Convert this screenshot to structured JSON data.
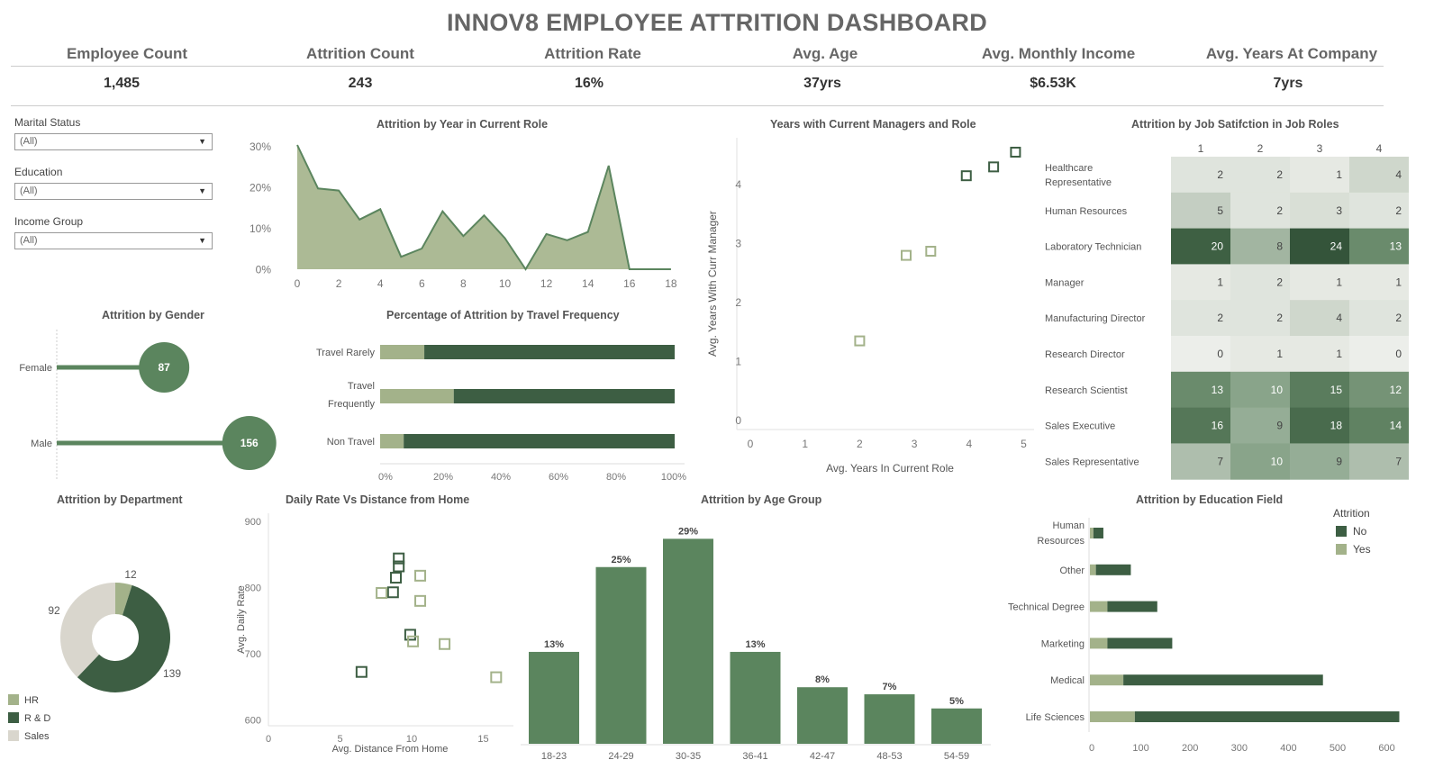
{
  "dashboard": {
    "title": "INNOV8 EMPLOYEE ATTRITION DASHBOARD"
  },
  "kpis": [
    {
      "label": "Employee Count",
      "value": "1,485"
    },
    {
      "label": "Attrition Count",
      "value": "243"
    },
    {
      "label": "Attrition Rate",
      "value": "16%"
    },
    {
      "label": "Avg. Age",
      "value": "37yrs"
    },
    {
      "label": "Avg. Monthly Income",
      "value": "$6.53K"
    },
    {
      "label": "Avg. Years At Company",
      "value": "7yrs"
    }
  ],
  "filters": [
    {
      "label": "Marital Status",
      "value": "(All)"
    },
    {
      "label": "Education",
      "value": "(All)"
    },
    {
      "label": "Income Group",
      "value": "(All)"
    }
  ],
  "colors": {
    "dark": "#3d5e43",
    "mid": "#5b855e",
    "light": "#a3b28a",
    "pale": "#d9d6cd"
  },
  "chart_data": [
    {
      "id": "year_role",
      "type": "area",
      "title": "Attrition by Year in Current Role",
      "x": [
        0,
        1,
        2,
        3,
        4,
        5,
        6,
        7,
        8,
        9,
        10,
        11,
        12,
        13,
        14,
        15,
        16,
        17,
        18
      ],
      "values": [
        30,
        19.5,
        19,
        12,
        14.5,
        3,
        5,
        14,
        8,
        13,
        7.5,
        0,
        8.5,
        7,
        9,
        25,
        0,
        0,
        0
      ],
      "xticks": [
        "0",
        "2",
        "4",
        "6",
        "8",
        "10",
        "12",
        "14",
        "16",
        "18"
      ],
      "yticks": [
        "30%",
        "20%",
        "10%",
        "0%"
      ]
    },
    {
      "id": "scatter_mgr",
      "type": "scatter",
      "title": "Years with Current Managers and Role",
      "xlabel": "Avg. Years In Current Role",
      "ylabel": "Avg. Years With Curr Manager",
      "xlim": [
        0,
        5
      ],
      "ylim": [
        0,
        4.5
      ],
      "xticks": [
        "0",
        "1",
        "2",
        "3",
        "4",
        "5"
      ],
      "yticks": [
        "0",
        "1",
        "2",
        "3",
        "4"
      ],
      "points": [
        {
          "x": 2.0,
          "y": 1.35,
          "attrition": "Yes"
        },
        {
          "x": 2.85,
          "y": 2.8,
          "attrition": "Yes"
        },
        {
          "x": 3.3,
          "y": 2.87,
          "attrition": "Yes"
        },
        {
          "x": 3.95,
          "y": 4.15,
          "attrition": "No"
        },
        {
          "x": 4.45,
          "y": 4.3,
          "attrition": "No"
        },
        {
          "x": 4.85,
          "y": 4.55,
          "attrition": "No"
        }
      ]
    },
    {
      "id": "heatmap",
      "type": "heatmap",
      "title": "Attrition by Job Satifction in Job Roles",
      "columns": [
        "1",
        "2",
        "3",
        "4"
      ],
      "rows": [
        "Healthcare Representative",
        "Human Resources",
        "Laboratory Technician",
        "Manager",
        "Manufacturing Director",
        "Research Director",
        "Research Scientist",
        "Sales Executive",
        "Sales Representative"
      ],
      "values": [
        [
          2,
          2,
          1,
          4
        ],
        [
          5,
          2,
          3,
          2
        ],
        [
          20,
          8,
          24,
          13
        ],
        [
          1,
          2,
          1,
          1
        ],
        [
          2,
          2,
          4,
          2
        ],
        [
          0,
          1,
          1,
          0
        ],
        [
          13,
          10,
          15,
          12
        ],
        [
          16,
          9,
          18,
          14
        ],
        [
          7,
          10,
          9,
          7
        ]
      ]
    },
    {
      "id": "gender",
      "type": "bar",
      "title": "Attrition by Gender",
      "categories": [
        "Female",
        "Male"
      ],
      "values": [
        87,
        156
      ]
    },
    {
      "id": "travel",
      "type": "bar",
      "title": "Percentage of Attrition by Travel Frequency",
      "categories": [
        "Travel Rarely",
        "Travel Frequently",
        "Non Travel"
      ],
      "yes_pct": [
        15,
        25,
        8
      ],
      "xticks": [
        "0%",
        "20%",
        "40%",
        "60%",
        "80%",
        "100%"
      ]
    },
    {
      "id": "department",
      "type": "pie",
      "title": "Attrition by Department",
      "categories": [
        "HR",
        "R & D",
        "Sales"
      ],
      "values": [
        12,
        139,
        92
      ]
    },
    {
      "id": "daily_rate",
      "type": "scatter",
      "title": "Daily Rate Vs Distance from Home",
      "xlabel": "Avg. Distance From Home",
      "ylabel": "Avg. Daily Rate",
      "xlim": [
        0,
        17
      ],
      "ylim": [
        600,
        900
      ],
      "xticks": [
        "0",
        "5",
        "10",
        "15"
      ],
      "yticks": [
        "900",
        "800",
        "700",
        "600"
      ],
      "points": [
        {
          "x": 6.5,
          "y": 673,
          "attrition": "No"
        },
        {
          "x": 8.7,
          "y": 793,
          "attrition": "No"
        },
        {
          "x": 8.9,
          "y": 815,
          "attrition": "No"
        },
        {
          "x": 9.1,
          "y": 832,
          "attrition": "No"
        },
        {
          "x": 9.1,
          "y": 844,
          "attrition": "No"
        },
        {
          "x": 9.9,
          "y": 729,
          "attrition": "No"
        },
        {
          "x": 7.9,
          "y": 792,
          "attrition": "Yes"
        },
        {
          "x": 10.1,
          "y": 719,
          "attrition": "Yes"
        },
        {
          "x": 10.6,
          "y": 818,
          "attrition": "Yes"
        },
        {
          "x": 10.6,
          "y": 780,
          "attrition": "Yes"
        },
        {
          "x": 12.3,
          "y": 715,
          "attrition": "Yes"
        },
        {
          "x": 15.9,
          "y": 665,
          "attrition": "Yes"
        }
      ]
    },
    {
      "id": "age_group",
      "type": "bar",
      "title": "Attrition by Age Group",
      "categories": [
        "18-23",
        "24-29",
        "30-35",
        "36-41",
        "42-47",
        "48-53",
        "54-59"
      ],
      "values": [
        13,
        25,
        29,
        13,
        8,
        7,
        5
      ],
      "labels": [
        "13%",
        "25%",
        "29%",
        "13%",
        "8%",
        "7%",
        "5%"
      ]
    },
    {
      "id": "education",
      "type": "bar",
      "title": "Attrition by Education Field",
      "categories": [
        "Human Resources",
        "Other",
        "Technical Degree",
        "Marketing",
        "Medical",
        "Life Sciences"
      ],
      "series": [
        {
          "name": "No",
          "values": [
            20,
            70,
            100,
            130,
            400,
            530
          ]
        },
        {
          "name": "Yes",
          "values": [
            7,
            12,
            35,
            35,
            67,
            90
          ]
        }
      ],
      "xticks": [
        "0",
        "100",
        "200",
        "300",
        "400",
        "500",
        "600"
      ],
      "legend_title": "Attrition"
    }
  ]
}
